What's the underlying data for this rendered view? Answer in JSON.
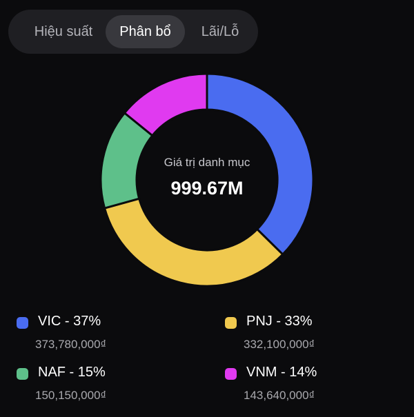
{
  "tabs": [
    {
      "label": "Hiệu suất",
      "active": false
    },
    {
      "label": "Phân bổ",
      "active": true
    },
    {
      "label": "Lãi/Lỗ",
      "active": false
    }
  ],
  "portfolio": {
    "caption": "Giá trị danh mục",
    "total": "999.67M"
  },
  "chart_data": {
    "type": "pie",
    "donut": true,
    "categories": [
      "VIC",
      "PNJ",
      "NAF",
      "VNM"
    ],
    "values": [
      37,
      33,
      15,
      14
    ],
    "colors": [
      "#4a6cf0",
      "#f0c94f",
      "#5ec08a",
      "#e03af0"
    ]
  },
  "legend": [
    {
      "title": "VIC - 37%",
      "value": "373,780,000₫",
      "color": "#4a6cf0"
    },
    {
      "title": "PNJ - 33%",
      "value": "332,100,000₫",
      "color": "#f0c94f"
    },
    {
      "title": "NAF - 15%",
      "value": "150,150,000₫",
      "color": "#5ec08a"
    },
    {
      "title": "VNM - 14%",
      "value": "143,640,000₫",
      "color": "#e03af0"
    }
  ]
}
